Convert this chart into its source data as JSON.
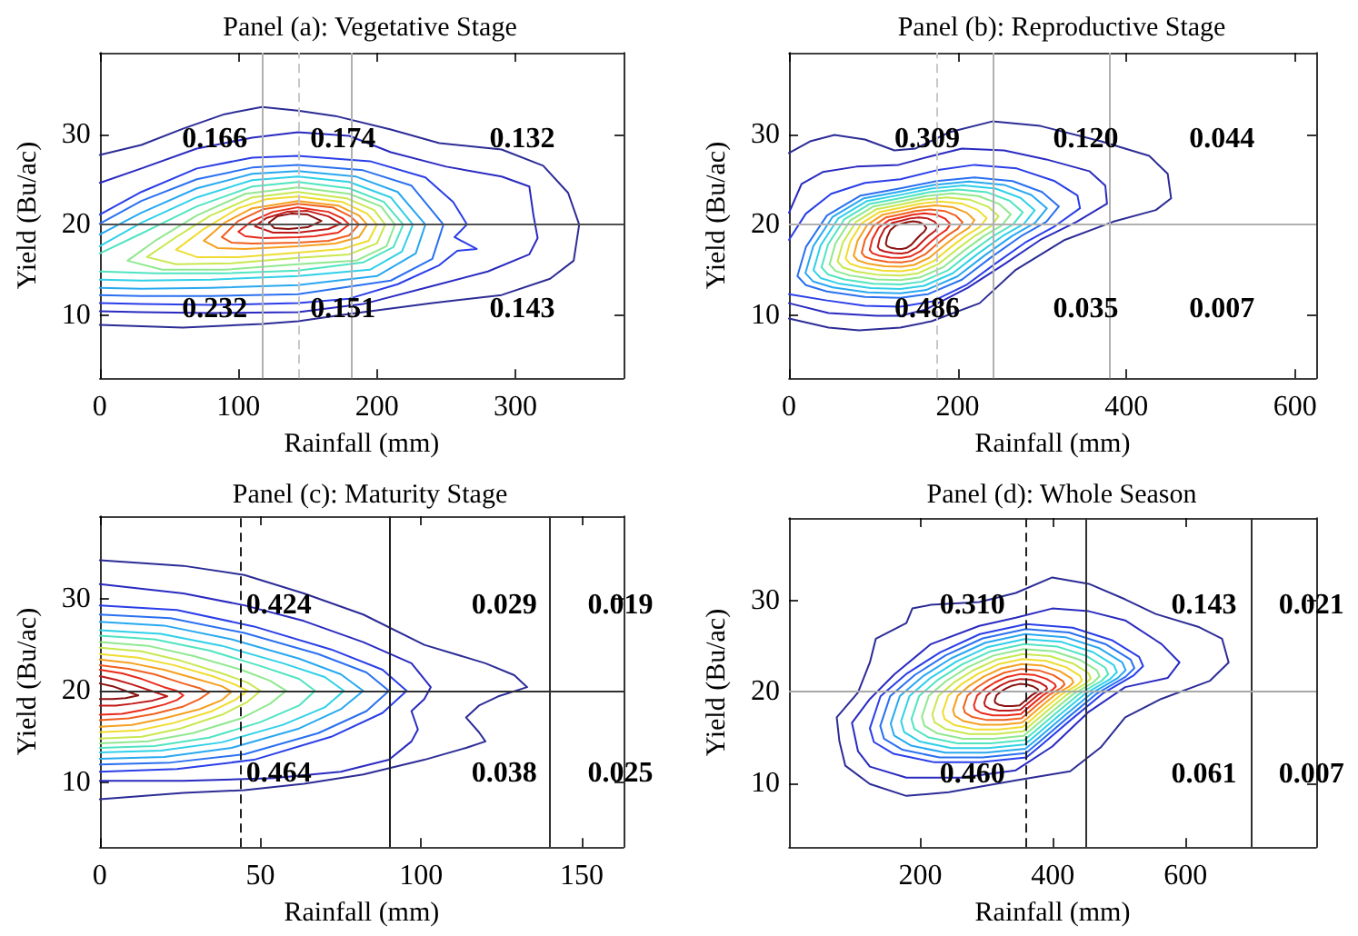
{
  "chart_data": [
    {
      "type": "line",
      "title": "Panel (a): Vegetative Stage",
      "xlabel": "Rainfall (mm)",
      "ylabel": "Yield (Bu/ac)",
      "xlim": [
        0,
        378
      ],
      "xticks": [
        0,
        100,
        200,
        300
      ],
      "ylim": [
        3,
        39
      ],
      "yticks": [
        10,
        20,
        30
      ],
      "ref_lines": [
        {
          "axis": "x",
          "value": 117,
          "color": "#b0b0b0",
          "line_style": "solid"
        },
        {
          "axis": "x",
          "value": 143,
          "color": "#c8c8c8",
          "line_style": "dashed"
        },
        {
          "axis": "x",
          "value": 182,
          "color": "#b0b0b0",
          "line_style": "solid"
        },
        {
          "axis": "y",
          "value": 20,
          "color": "#505050",
          "line_style": "solid"
        }
      ],
      "annotations": [
        "0.166",
        "0.174",
        "0.132",
        "0.232",
        "0.151",
        "0.143"
      ],
      "series": [
        {
          "color": "#2c2c96",
          "x": [
            0,
            30,
            60,
            90,
            117,
            143,
            170,
            210,
            245,
            290,
            320,
            338,
            346,
            342,
            325,
            290,
            240,
            175,
            143,
            117,
            60,
            0
          ],
          "values": [
            27.7,
            28.8,
            30.6,
            32.2,
            33.0,
            32.6,
            32.0,
            30.5,
            29.0,
            28.3,
            26.5,
            23.5,
            20,
            16,
            14,
            12.2,
            11.3,
            10.0,
            9.3,
            9.0,
            8.6,
            8.9
          ]
        },
        {
          "color": "#2a2ac0",
          "x": [
            0,
            30,
            70,
            110,
            143,
            180,
            210,
            250,
            290,
            310,
            313,
            316,
            310,
            280,
            240,
            190,
            143,
            80,
            30,
            0
          ],
          "values": [
            24.6,
            26.2,
            28.4,
            29.6,
            30.2,
            29.8,
            28.0,
            26.4,
            25.3,
            24.2,
            21,
            18.5,
            16.7,
            14.8,
            13.2,
            11.2,
            10.3,
            10.2,
            10.3,
            10.4
          ]
        },
        {
          "color": "#2a3ee8",
          "x": [
            0,
            30,
            70,
            110,
            143,
            195,
            235,
            255,
            265,
            256,
            272,
            258,
            245,
            215,
            180,
            143,
            80,
            30,
            0
          ],
          "values": [
            21.1,
            23.6,
            26.2,
            27.4,
            27.6,
            27.0,
            25.2,
            22.5,
            20,
            18.6,
            17.3,
            17.1,
            15.5,
            13.4,
            11.8,
            11.3,
            11.1,
            11.2,
            11.3
          ]
        },
        {
          "color": "#2a70f0",
          "x": [
            0,
            30,
            70,
            110,
            143,
            190,
            225,
            248,
            240,
            210,
            143,
            80,
            30,
            0
          ],
          "values": [
            20.1,
            22.6,
            25.0,
            26.3,
            26.6,
            26.0,
            24.3,
            20,
            16.2,
            13.8,
            12.3,
            12.1,
            12.1,
            12.2
          ]
        },
        {
          "color": "#28a8f0",
          "x": [
            0,
            30,
            70,
            110,
            143,
            185,
            215,
            235,
            228,
            200,
            143,
            80,
            30,
            0
          ],
          "values": [
            18.9,
            21.3,
            24.0,
            25.6,
            25.9,
            25.3,
            23.6,
            20,
            16.8,
            14.3,
            13.3,
            13.0,
            12.9,
            13.0
          ]
        },
        {
          "color": "#30d0e8",
          "x": [
            0,
            30,
            70,
            110,
            143,
            180,
            210,
            226,
            218,
            195,
            143,
            80,
            30,
            0
          ],
          "values": [
            17.6,
            20.2,
            23.0,
            24.9,
            25.3,
            24.7,
            23.0,
            20,
            17.0,
            15.0,
            14.3,
            13.9,
            13.8,
            13.9
          ]
        },
        {
          "color": "#50e4c0",
          "x": [
            0,
            30,
            70,
            110,
            143,
            180,
            205,
            219,
            212,
            190,
            143,
            90,
            40,
            0
          ],
          "values": [
            16.8,
            19.0,
            22.0,
            24.2,
            24.7,
            24.0,
            22.5,
            20,
            17.5,
            15.8,
            14.9,
            14.6,
            14.6,
            14.8
          ]
        }
      ]
    },
    {
      "type": "line",
      "title": "Panel (b): Reproductive Stage",
      "xlabel": "Rainfall (mm)",
      "ylabel": "Yield (Bu/ac)",
      "xlim": [
        0,
        625
      ],
      "xticks": [
        0,
        200,
        400,
        600
      ],
      "ylim": [
        3,
        39
      ],
      "yticks": [
        10,
        20,
        30
      ],
      "ref_lines": [
        {
          "axis": "x",
          "value": 175,
          "color": "#c8c8c8",
          "line_style": "dashed"
        },
        {
          "axis": "x",
          "value": 242,
          "color": "#b0b0b0",
          "line_style": "solid"
        },
        {
          "axis": "x",
          "value": 379,
          "color": "#b0b0b0",
          "line_style": "solid"
        },
        {
          "axis": "y",
          "value": 20,
          "color": "#b0b0b0",
          "line_style": "solid"
        }
      ],
      "annotations": [
        "0.309",
        "0.120",
        "0.044",
        "0.486",
        "0.035",
        "0.007"
      ],
      "series": [
        {
          "color": "#2c2c96",
          "x": [
            0,
            25,
            54,
            90,
            125,
            150,
            190,
            241,
            298,
            370,
            427,
            449,
            453,
            435,
            384,
            327,
            269,
            226,
            169,
            132,
            83,
            47,
            0
          ],
          "values": [
            27.9,
            29.2,
            29.9,
            29.4,
            28.2,
            28.4,
            30.2,
            31.4,
            30.9,
            29.2,
            27.6,
            25.6,
            22.9,
            21.6,
            20.3,
            18.3,
            15,
            11.3,
            9.3,
            8.6,
            8.3,
            8.6,
            9.6
          ]
        },
        {
          "color": "#2a2ac0",
          "x": [
            0,
            15,
            40,
            80,
            130,
            170,
            205,
            255,
            305,
            356,
            375,
            377,
            341,
            298,
            255,
            212,
            162,
            132,
            104,
            47,
            0
          ],
          "values": [
            21.3,
            24.5,
            25.8,
            26.4,
            26.6,
            27.6,
            28.4,
            28.2,
            27.2,
            25.9,
            24.3,
            22.3,
            20.3,
            18.3,
            15.6,
            13,
            10.6,
            9.9,
            9.9,
            10.2,
            11.3
          ]
        },
        {
          "color": "#2a3ee8",
          "x": [
            0,
            20,
            50,
            90,
            132,
            175,
            220,
            270,
            315,
            342,
            345,
            315,
            280,
            245,
            210,
            170,
            132,
            90,
            45,
            0
          ],
          "values": [
            18.3,
            21.2,
            23.4,
            24.6,
            25.0,
            26.0,
            26.6,
            26.2,
            24.8,
            23.2,
            21.8,
            19.8,
            18.0,
            15.7,
            13.3,
            11.5,
            10.9,
            11.0,
            11.6,
            12.3
          ]
        }
      ]
    },
    {
      "type": "line",
      "title": "Panel (c): Maturity Stage",
      "xlabel": "Rainfall (mm)",
      "ylabel": "Yield (Bu/ac)",
      "xlim": [
        0,
        163
      ],
      "xticks": [
        0,
        50,
        100,
        150
      ],
      "ylim": [
        3,
        39
      ],
      "yticks": [
        10,
        20,
        30
      ],
      "ref_lines": [
        {
          "axis": "x",
          "value": 44,
          "color": "#202020",
          "line_style": "dashed"
        },
        {
          "axis": "x",
          "value": 90,
          "color": "#202020",
          "line_style": "solid"
        },
        {
          "axis": "x",
          "value": 140,
          "color": "#303030",
          "line_style": "solid"
        },
        {
          "axis": "y",
          "value": 20,
          "color": "#303030",
          "line_style": "solid"
        }
      ],
      "annotations": [
        "0.424",
        "0.029",
        "0.019",
        "0.464",
        "0.038",
        "0.025"
      ],
      "series": [
        {
          "color": "#2c2c96",
          "x": [
            0,
            26,
            45,
            63.5,
            82,
            101,
            120,
            129,
            133,
            124,
            118,
            114,
            118,
            120,
            114,
            101,
            82,
            63.5,
            45,
            26,
            0
          ],
          "values": [
            34.2,
            33.6,
            32.6,
            30.6,
            28.3,
            25,
            23,
            21.7,
            20.4,
            19.4,
            18.4,
            17.1,
            15.5,
            14.5,
            13.8,
            12.5,
            10.9,
            9.9,
            9.2,
            8.9,
            8.2
          ]
        },
        {
          "color": "#2a2ac0",
          "x": [
            0,
            26,
            45,
            63.5,
            82,
            97,
            103,
            101,
            97,
            99,
            97,
            90,
            75,
            54,
            26,
            0
          ],
          "values": [
            31.6,
            30.6,
            29.3,
            27.6,
            25.3,
            23,
            20.4,
            19.1,
            17.8,
            15.8,
            14.5,
            12.5,
            11.2,
            10.5,
            10.2,
            10.2
          ]
        },
        {
          "color": "#2a3ee8",
          "x": [
            0,
            24,
            48,
            72,
            88,
            95.5,
            88,
            72,
            48,
            24,
            0
          ],
          "values": [
            29.3,
            28.8,
            27.0,
            24.5,
            22.3,
            20,
            17.6,
            15.0,
            12.5,
            11.5,
            11.2
          ]
        },
        {
          "color": "#2a70f0",
          "x": [
            0,
            22,
            45,
            68,
            83,
            90,
            83,
            68,
            45,
            22,
            0
          ],
          "values": [
            28.3,
            27.9,
            26.3,
            24.0,
            22.0,
            20,
            17.8,
            15.4,
            13.1,
            12.2,
            12.0
          ]
        },
        {
          "color": "#28a8f0",
          "x": [
            0,
            20,
            41,
            62,
            75,
            82,
            75,
            62,
            41,
            20,
            0
          ],
          "values": [
            27.5,
            27.1,
            25.6,
            23.5,
            21.8,
            20,
            18.0,
            15.9,
            13.8,
            12.8,
            12.6
          ]
        },
        {
          "color": "#30d0e8",
          "x": [
            0,
            19,
            38,
            57,
            70,
            76,
            70,
            57,
            38,
            19,
            0
          ],
          "values": [
            26.6,
            26.2,
            24.9,
            23.0,
            21.5,
            20,
            18.2,
            16.3,
            14.4,
            13.5,
            13.3
          ]
        },
        {
          "color": "#50e4c0",
          "x": [
            0,
            17,
            34,
            50,
            62,
            67,
            62,
            50,
            34,
            17,
            0
          ],
          "values": [
            26.0,
            25.6,
            24.4,
            22.7,
            21.3,
            20,
            18.4,
            16.6,
            14.9,
            14.0,
            13.8
          ]
        },
        {
          "color": "#90e890",
          "x": [
            0,
            15,
            29,
            44,
            53,
            58,
            53,
            44,
            29,
            15,
            0
          ],
          "values": [
            25.3,
            24.9,
            23.8,
            22.3,
            21.1,
            20,
            18.6,
            17.0,
            15.4,
            14.5,
            14.3
          ]
        },
        {
          "color": "#c8e850",
          "x": [
            0,
            13,
            25,
            38,
            46,
            50,
            46,
            38,
            25,
            13,
            0
          ],
          "values": [
            24.7,
            24.3,
            23.3,
            21.9,
            20.9,
            20,
            18.8,
            17.4,
            15.9,
            15.0,
            14.8
          ]
        },
        {
          "color": "#f0dc30",
          "x": [
            0,
            12,
            23,
            35,
            42,
            46,
            42,
            35,
            23,
            12,
            0
          ],
          "values": [
            24.0,
            23.6,
            22.8,
            21.6,
            20.7,
            20,
            19.0,
            17.8,
            16.5,
            15.7,
            15.5
          ]
        },
        {
          "color": "#f5a020",
          "x": [
            0,
            10,
            20,
            31,
            38,
            41,
            38,
            31,
            20,
            10,
            0
          ],
          "values": [
            23.4,
            23.0,
            22.3,
            21.2,
            20.5,
            19.9,
            19.0,
            18.0,
            17.0,
            16.3,
            16.1
          ]
        },
        {
          "color": "#f06020",
          "x": [
            0,
            9,
            17,
            26,
            31,
            34,
            31,
            26,
            17,
            9,
            0
          ],
          "values": [
            22.8,
            22.4,
            21.8,
            20.8,
            20.3,
            19.8,
            19.1,
            18.3,
            17.5,
            17.0,
            16.8
          ]
        },
        {
          "color": "#e82a1a",
          "x": [
            0,
            7,
            13,
            20,
            24,
            26,
            24,
            20,
            13,
            7,
            0
          ],
          "values": [
            22.3,
            21.9,
            21.3,
            20.4,
            20.0,
            19.5,
            19.0,
            18.5,
            17.9,
            17.5,
            17.4
          ]
        },
        {
          "color": "#c01818",
          "x": [
            0,
            5,
            10,
            16,
            21,
            16,
            10,
            5,
            0
          ],
          "values": [
            21.6,
            21.2,
            20.7,
            20.0,
            19.4,
            18.9,
            18.6,
            18.4,
            18.4
          ]
        },
        {
          "color": "#8a1010",
          "x": [
            0,
            4,
            8,
            12,
            8,
            4,
            0
          ],
          "values": [
            20.8,
            20.5,
            20.0,
            19.5,
            19.2,
            19.1,
            19.1
          ]
        }
      ]
    },
    {
      "type": "line",
      "title": "Panel (d): Whole Season",
      "xlabel": "Rainfall (mm)",
      "ylabel": "Yield (Bu/ac)",
      "xlim": [
        2,
        797
      ],
      "xticks": [
        200,
        400,
        600
      ],
      "ylim": [
        3,
        39
      ],
      "yticks": [
        10,
        20,
        30
      ],
      "ref_lines": [
        {
          "axis": "x",
          "value": 359,
          "color": "#202020",
          "line_style": "dashed"
        },
        {
          "axis": "x",
          "value": 449,
          "color": "#303030",
          "line_style": "solid"
        },
        {
          "axis": "x",
          "value": 699,
          "color": "#303030",
          "line_style": "solid"
        },
        {
          "axis": "y",
          "value": 20,
          "color": "#a8a8a8",
          "line_style": "solid"
        }
      ],
      "annotations": [
        "0.310",
        "0.143",
        "0.021",
        "0.460",
        "0.061",
        "0.007"
      ]
    }
  ]
}
